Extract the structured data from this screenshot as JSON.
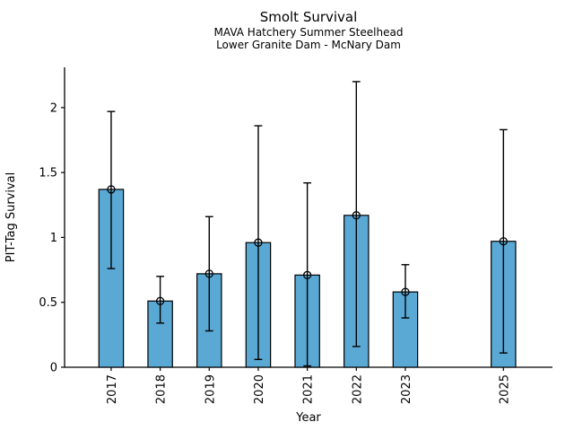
{
  "figure": {
    "title": "Smolt Survival",
    "subtitle_line1": "MAVA Hatchery Summer Steelhead",
    "subtitle_line2": "Lower Granite Dam - McNary Dam",
    "background_color": "#ffffff",
    "text_color": "#000000"
  },
  "chart_data": {
    "type": "bar",
    "title": "Smolt Survival",
    "subtitle": [
      "MAVA Hatchery Summer Steelhead",
      "Lower Granite Dam - McNary Dam"
    ],
    "xlabel": "Year",
    "ylabel": "PIT-Tag Survival",
    "categories": [
      "2017",
      "2018",
      "2019",
      "2020",
      "2021",
      "2022",
      "2023",
      "2025"
    ],
    "values": [
      1.37,
      0.51,
      0.72,
      0.96,
      0.71,
      1.17,
      0.58,
      0.97
    ],
    "error_low": [
      0.76,
      0.34,
      0.28,
      0.06,
      0.01,
      0.16,
      0.38,
      0.11
    ],
    "error_high": [
      1.97,
      0.7,
      1.16,
      1.86,
      1.42,
      2.2,
      0.79,
      1.83
    ],
    "missing_years": [
      "2024"
    ],
    "xlim": [
      2016.05,
      2026.0
    ],
    "ylim": [
      0,
      2.31
    ],
    "yticks": [
      0,
      0.5,
      1,
      1.5,
      2
    ],
    "ytick_labels": [
      "0",
      "0.5",
      "1",
      "1.5",
      "2"
    ],
    "bar_width_years": 0.5,
    "bar_color": "#5AA8D4",
    "bar_edge_color": "#000000",
    "errorbar_color": "#000000",
    "marker": "open-circle",
    "grid": false,
    "legend": null,
    "xtick_rotation": "vertical-bottom-to-top"
  }
}
